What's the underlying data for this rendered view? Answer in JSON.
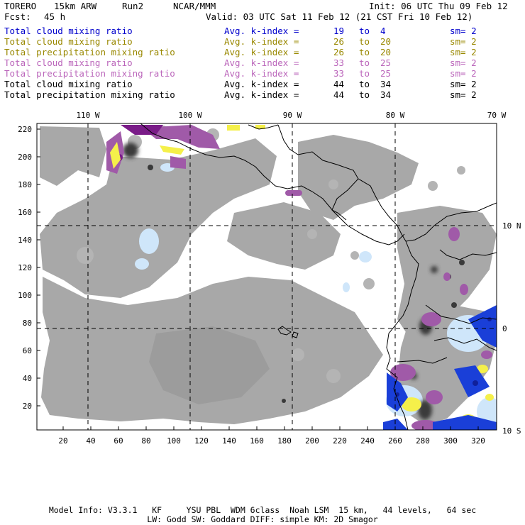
{
  "header": {
    "model": "TORERO",
    "grid": "15km ARW",
    "run": "Run2",
    "org": "NCAR/MMM",
    "init": "Init: 06 UTC Thu 09 Feb 12",
    "fcst_label": "Fcst:",
    "fcst_value": "45 h",
    "valid": "Valid: 03 UTC Sat 11 Feb 12 (21 CST Fri 10 Feb 12)"
  },
  "legend": [
    {
      "field": "Total cloud mixing ratio",
      "index_label": "Avg. k-index =",
      "from": "19",
      "to_label": "to",
      "to": "4",
      "sm": "sm= 2",
      "color": "#0000cc"
    },
    {
      "field": "Total cloud mixing ratio",
      "index_label": "Avg. k-index =",
      "from": "26",
      "to_label": "to",
      "to": "20",
      "sm": "sm= 2",
      "color": "#998800"
    },
    {
      "field": "Total precipitation mixing ratio",
      "index_label": "Avg. k-index =",
      "from": "26",
      "to_label": "to",
      "to": "20",
      "sm": "sm= 2",
      "color": "#998800"
    },
    {
      "field": "Total cloud mixing ratio",
      "index_label": "Avg. k-index =",
      "from": "33",
      "to_label": "to",
      "to": "25",
      "sm": "sm= 2",
      "color": "#bb66bb"
    },
    {
      "field": "Total precipitation mixing ratio",
      "index_label": "Avg. k-index =",
      "from": "33",
      "to_label": "to",
      "to": "25",
      "sm": "sm= 2",
      "color": "#bb66bb"
    },
    {
      "field": "Total cloud mixing ratio",
      "index_label": "Avg. k-index =",
      "from": "44",
      "to_label": "to",
      "to": "34",
      "sm": "sm= 2",
      "color": "#000000"
    },
    {
      "field": "Total precipitation mixing ratio",
      "index_label": "Avg. k-index =",
      "from": "44",
      "to_label": "to",
      "to": "34",
      "sm": "sm= 2",
      "color": "#000000"
    }
  ],
  "map": {
    "lon_labels": [
      "110 W",
      "100 W",
      "90 W",
      "80 W",
      "70 W"
    ],
    "lat_labels": [
      "10 N",
      "0",
      "10 S"
    ],
    "y_ticks": [
      "220",
      "200",
      "180",
      "160",
      "140",
      "120",
      "100",
      "80",
      "60",
      "40",
      "20"
    ],
    "x_ticks": [
      "20",
      "40",
      "60",
      "80",
      "100",
      "120",
      "140",
      "160",
      "180",
      "200",
      "220",
      "240",
      "260",
      "280",
      "300",
      "320"
    ],
    "colors": {
      "gray": "#a8a8a8",
      "dark": "#3a3a3a",
      "purple": "#a05aa8",
      "deep_purple": "#7a1c88",
      "yellow": "#f5f04a",
      "light_blue": "#cfe6fa",
      "blue": "#1a3fd8",
      "navy": "#10209a"
    }
  },
  "footer": {
    "line1": "Model Info: V3.3.1   KF     YSU PBL  WDM 6class  Noah LSM  15 km,   44 levels,   64 sec",
    "line2": "LW: Godd SW: Goddard DIFF: simple KM: 2D Smagor"
  }
}
